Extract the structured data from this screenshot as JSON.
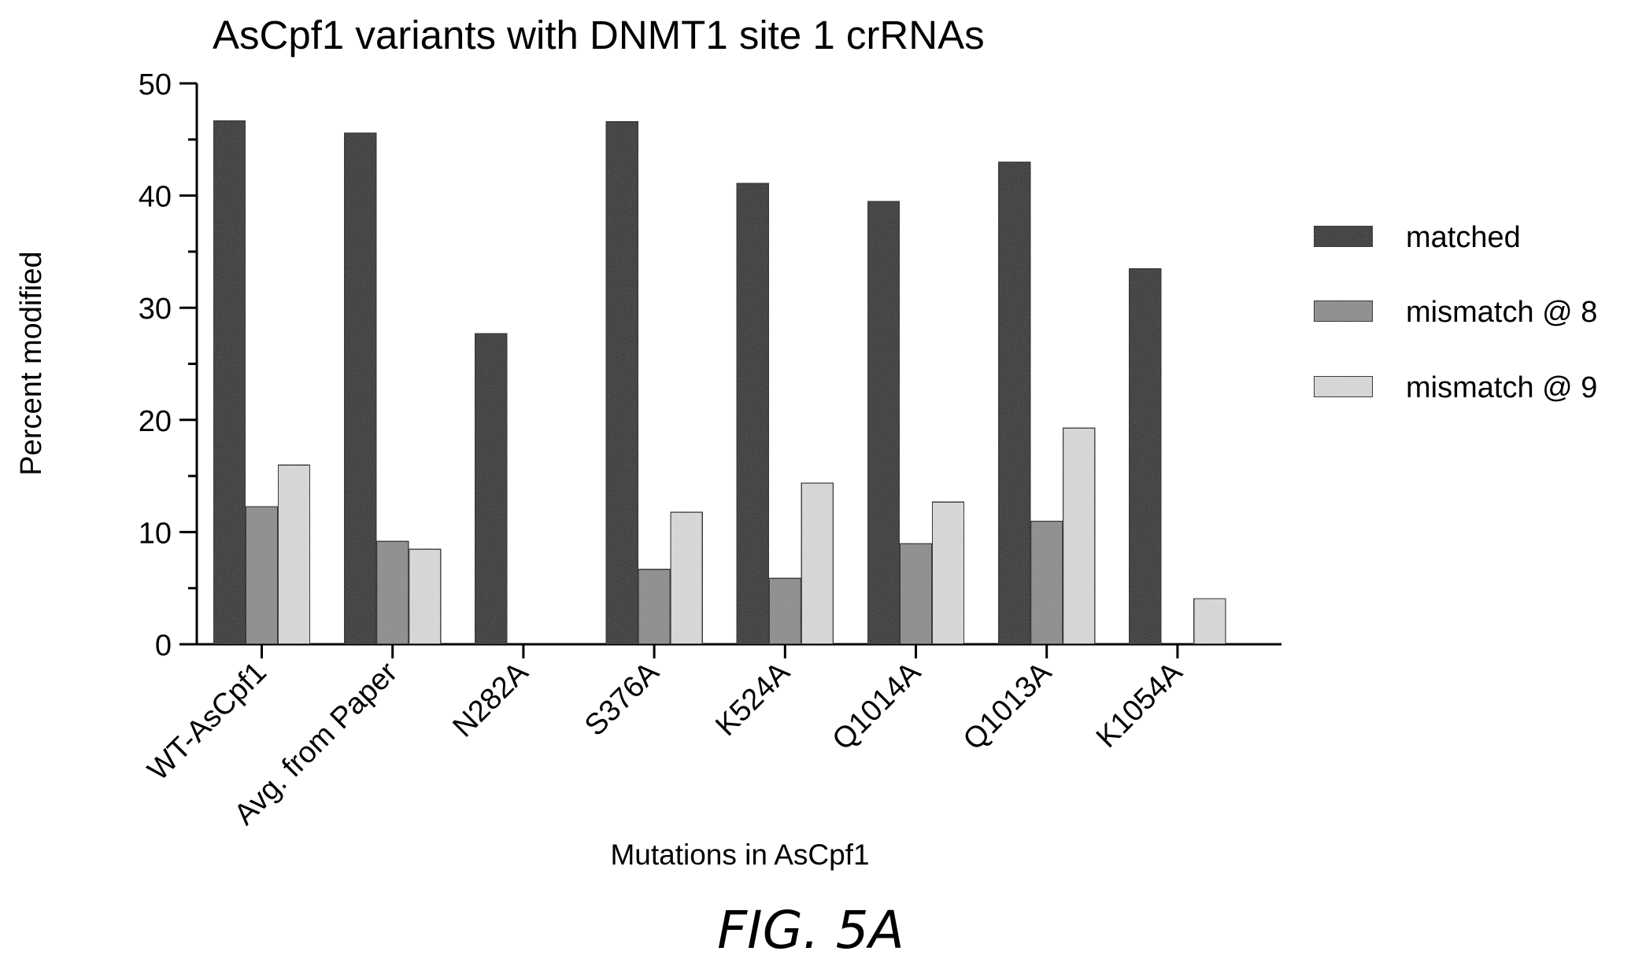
{
  "figure": {
    "caption": "FIG. 5A"
  },
  "chart_data": {
    "type": "bar",
    "title": "AsCpf1 variants with DNMT1 site 1 crRNAs",
    "xlabel": "Mutations in AsCpf1",
    "ylabel": "Percent  modified",
    "ylim": [
      0,
      50
    ],
    "yticks": [
      "0",
      "10",
      "20",
      "30",
      "40",
      "50"
    ],
    "categories": [
      "WT-AsCpf1",
      "Avg. from Paper",
      "N282A",
      "S376A",
      "K524A",
      "Q1014A",
      "Q1013A",
      "K1054A"
    ],
    "series": [
      {
        "name": "matched",
        "color": "#2b2b2b",
        "values": [
          46.7,
          45.6,
          27.7,
          46.6,
          41.1,
          39.5,
          43.0,
          33.5
        ]
      },
      {
        "name": "mismatch @ 8",
        "color": "#8c8c8c",
        "values": [
          12.3,
          9.2,
          0,
          6.7,
          5.9,
          9.0,
          11.0,
          0
        ]
      },
      {
        "name": "mismatch @ 9",
        "color": "#d9d9d9",
        "values": [
          16.0,
          8.5,
          0,
          11.8,
          14.4,
          12.7,
          19.3,
          4.1
        ]
      }
    ],
    "grid": false,
    "legend_position": "right"
  }
}
